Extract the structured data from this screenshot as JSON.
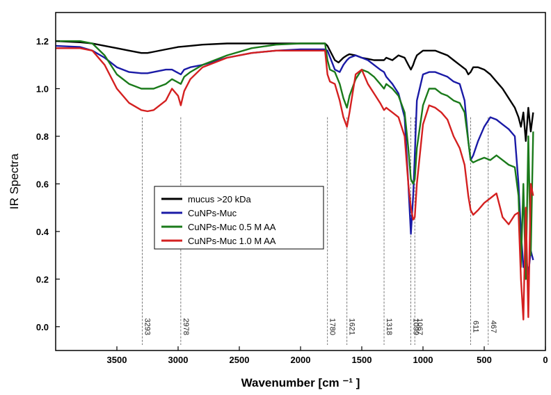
{
  "chart_data": {
    "type": "line",
    "title": "",
    "xlabel": "Wavenumber [cm ⁻¹ ]",
    "ylabel": "IR Spectra",
    "xlim": [
      4000,
      0
    ],
    "ylim": [
      -0.1,
      1.32
    ],
    "xticks": [
      3500,
      3000,
      2500,
      2000,
      1500,
      1000,
      500,
      0
    ],
    "xtick_labels": [
      "3500",
      "3000",
      "2500",
      "2000",
      "1500",
      "1000",
      "500",
      "0"
    ],
    "yticks": [
      0.0,
      0.2,
      0.4,
      0.6,
      0.8,
      1.0,
      1.2
    ],
    "ytick_labels": [
      "0.0",
      "0.2",
      "0.4",
      "0.6",
      "0.8",
      "1.0",
      "1.2"
    ],
    "legend_position": "center-left",
    "annotations": [
      {
        "x": 3293,
        "label": "3293"
      },
      {
        "x": 2978,
        "label": "2978"
      },
      {
        "x": 1780,
        "label": "1780"
      },
      {
        "x": 1621,
        "label": "1621"
      },
      {
        "x": 1318,
        "label": "1318"
      },
      {
        "x": 1099,
        "label": "1099"
      },
      {
        "x": 1067,
        "label": "1067"
      },
      {
        "x": 611,
        "label": "611"
      },
      {
        "x": 467,
        "label": "467"
      }
    ],
    "series": [
      {
        "name": "mucus >20 kDa",
        "color": "#000000",
        "x": [
          4000,
          3800,
          3700,
          3600,
          3500,
          3400,
          3300,
          3250,
          3200,
          3100,
          3000,
          2900,
          2800,
          2600,
          2400,
          2200,
          2000,
          1900,
          1800,
          1780,
          1720,
          1690,
          1650,
          1621,
          1600,
          1550,
          1500,
          1450,
          1400,
          1350,
          1318,
          1300,
          1250,
          1200,
          1150,
          1120,
          1099,
          1080,
          1067,
          1050,
          1000,
          950,
          900,
          850,
          800,
          750,
          700,
          650,
          630,
          611,
          590,
          550,
          500,
          450,
          400,
          350,
          300,
          250,
          220,
          200,
          180,
          160,
          140,
          120,
          100
        ],
        "y": [
          1.2,
          1.195,
          1.19,
          1.18,
          1.17,
          1.16,
          1.15,
          1.15,
          1.155,
          1.165,
          1.175,
          1.18,
          1.185,
          1.19,
          1.19,
          1.19,
          1.19,
          1.19,
          1.19,
          1.18,
          1.12,
          1.11,
          1.13,
          1.14,
          1.145,
          1.14,
          1.13,
          1.125,
          1.12,
          1.12,
          1.12,
          1.13,
          1.12,
          1.14,
          1.13,
          1.1,
          1.08,
          1.1,
          1.12,
          1.14,
          1.16,
          1.16,
          1.16,
          1.15,
          1.14,
          1.12,
          1.1,
          1.08,
          1.06,
          1.07,
          1.09,
          1.09,
          1.08,
          1.06,
          1.03,
          1.0,
          0.96,
          0.92,
          0.88,
          0.84,
          0.9,
          0.78,
          0.92,
          0.82,
          0.9
        ]
      },
      {
        "name": "CuNPs-Muc",
        "color": "#1a1aa6",
        "x": [
          4000,
          3800,
          3700,
          3600,
          3500,
          3400,
          3300,
          3250,
          3200,
          3100,
          3050,
          2978,
          2950,
          2900,
          2800,
          2600,
          2400,
          2200,
          2000,
          1900,
          1800,
          1780,
          1720,
          1680,
          1650,
          1621,
          1600,
          1550,
          1500,
          1450,
          1400,
          1350,
          1318,
          1300,
          1250,
          1200,
          1150,
          1120,
          1099,
          1080,
          1067,
          1050,
          1000,
          950,
          900,
          850,
          800,
          750,
          700,
          660,
          630,
          611,
          590,
          550,
          500,
          450,
          400,
          350,
          300,
          250,
          220,
          200,
          180,
          160,
          140,
          120,
          100
        ],
        "y": [
          1.18,
          1.175,
          1.16,
          1.13,
          1.09,
          1.07,
          1.065,
          1.065,
          1.07,
          1.08,
          1.08,
          1.06,
          1.08,
          1.09,
          1.1,
          1.13,
          1.15,
          1.16,
          1.165,
          1.165,
          1.165,
          1.16,
          1.08,
          1.07,
          1.1,
          1.12,
          1.13,
          1.14,
          1.13,
          1.12,
          1.1,
          1.08,
          1.07,
          1.05,
          1.02,
          0.98,
          0.88,
          0.6,
          0.39,
          0.55,
          0.72,
          0.95,
          1.06,
          1.07,
          1.07,
          1.06,
          1.05,
          1.03,
          1.02,
          0.95,
          0.78,
          0.7,
          0.72,
          0.78,
          0.84,
          0.88,
          0.87,
          0.85,
          0.83,
          0.8,
          0.6,
          0.4,
          0.25,
          0.3,
          0.22,
          0.32,
          0.28
        ]
      },
      {
        "name": "CuNPs-Muc 0.5 M AA",
        "color": "#1a7a1a",
        "x": [
          4000,
          3800,
          3700,
          3600,
          3500,
          3400,
          3300,
          3250,
          3200,
          3100,
          3050,
          2978,
          2950,
          2900,
          2800,
          2600,
          2400,
          2200,
          2000,
          1900,
          1800,
          1780,
          1760,
          1720,
          1680,
          1650,
          1621,
          1600,
          1550,
          1500,
          1450,
          1400,
          1350,
          1318,
          1300,
          1250,
          1200,
          1150,
          1120,
          1099,
          1080,
          1067,
          1050,
          1000,
          950,
          900,
          850,
          800,
          750,
          700,
          660,
          630,
          611,
          590,
          550,
          500,
          450,
          400,
          350,
          300,
          250,
          220,
          200,
          180,
          160,
          140,
          120,
          100
        ],
        "y": [
          1.2,
          1.2,
          1.19,
          1.14,
          1.06,
          1.02,
          1.0,
          1.0,
          1.0,
          1.02,
          1.04,
          1.02,
          1.05,
          1.07,
          1.1,
          1.14,
          1.17,
          1.185,
          1.19,
          1.19,
          1.19,
          1.12,
          1.08,
          1.07,
          1.02,
          0.96,
          0.92,
          0.97,
          1.04,
          1.08,
          1.07,
          1.05,
          1.02,
          1.0,
          1.02,
          1.0,
          0.97,
          0.9,
          0.75,
          0.62,
          0.6,
          0.62,
          0.75,
          0.93,
          1.0,
          1.0,
          0.98,
          0.97,
          0.95,
          0.94,
          0.9,
          0.78,
          0.7,
          0.69,
          0.7,
          0.71,
          0.7,
          0.72,
          0.7,
          0.68,
          0.67,
          0.55,
          0.25,
          0.6,
          0.2,
          0.8,
          0.3,
          0.82
        ]
      },
      {
        "name": "CuNPs-Muc 1.0 M AA",
        "color": "#d42020",
        "x": [
          4000,
          3800,
          3700,
          3600,
          3500,
          3400,
          3300,
          3250,
          3200,
          3100,
          3050,
          3000,
          2978,
          2950,
          2900,
          2800,
          2600,
          2400,
          2200,
          2000,
          1900,
          1800,
          1780,
          1760,
          1720,
          1680,
          1650,
          1621,
          1600,
          1550,
          1500,
          1450,
          1400,
          1350,
          1318,
          1300,
          1250,
          1200,
          1150,
          1120,
          1099,
          1080,
          1067,
          1050,
          1000,
          950,
          900,
          850,
          800,
          750,
          700,
          660,
          630,
          611,
          590,
          550,
          500,
          450,
          400,
          350,
          300,
          250,
          220,
          200,
          180,
          160,
          140,
          120,
          100
        ],
        "y": [
          1.17,
          1.17,
          1.16,
          1.1,
          1.0,
          0.94,
          0.91,
          0.905,
          0.91,
          0.95,
          1.0,
          0.97,
          0.93,
          0.99,
          1.04,
          1.09,
          1.13,
          1.15,
          1.16,
          1.16,
          1.16,
          1.16,
          1.06,
          1.03,
          1.02,
          0.95,
          0.88,
          0.84,
          0.9,
          1.06,
          1.08,
          1.02,
          0.98,
          0.94,
          0.91,
          0.92,
          0.9,
          0.88,
          0.8,
          0.6,
          0.5,
          0.45,
          0.46,
          0.6,
          0.85,
          0.93,
          0.92,
          0.9,
          0.87,
          0.8,
          0.75,
          0.68,
          0.55,
          0.49,
          0.47,
          0.49,
          0.52,
          0.54,
          0.56,
          0.46,
          0.43,
          0.47,
          0.48,
          0.2,
          0.03,
          0.5,
          0.04,
          0.6,
          0.55
        ]
      }
    ]
  }
}
